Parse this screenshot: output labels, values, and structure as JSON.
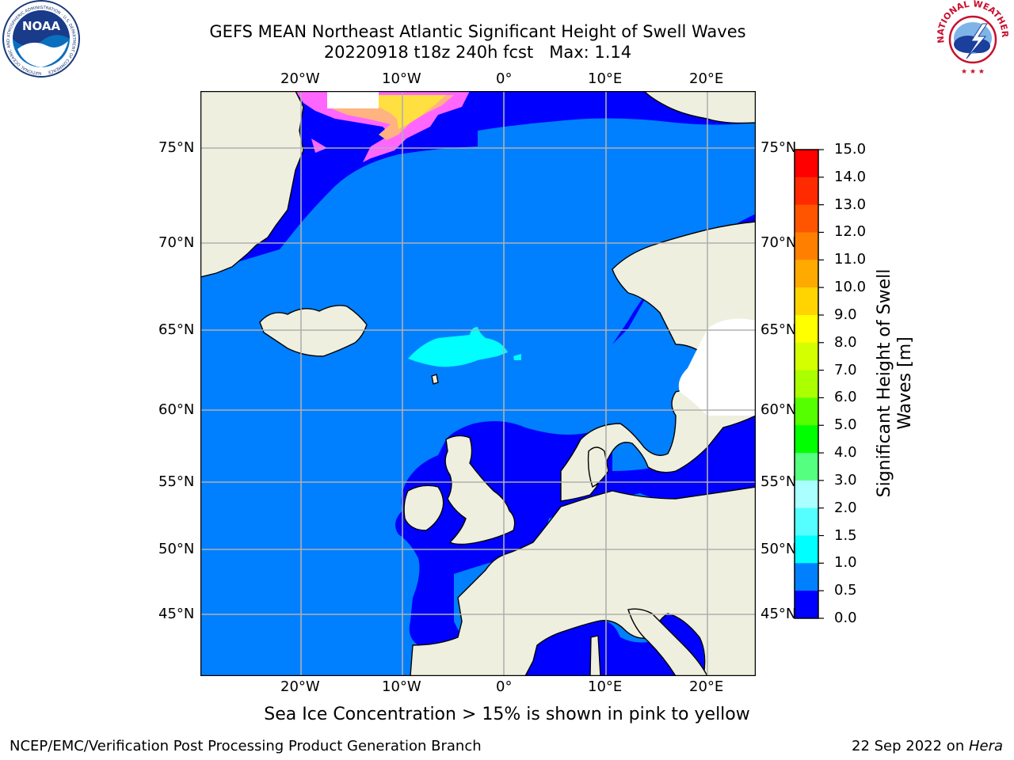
{
  "header": {
    "title_line1": "GEFS MEAN Northeast Atlantic Significant Height of Swell Waves",
    "title_line2": "20220918 t18z 240h fcst   Max: 1.14"
  },
  "logos": {
    "noaa_text": "NOAA",
    "noaa_ring_text": "NATIONAL OCEANIC AND ATMOSPHERIC ADMINISTRATION · U.S. DEPARTMENT OF COMMERCE",
    "nws_ring_text": "NATIONAL WEATHER SERVICE"
  },
  "map": {
    "lon_ticks_top": [
      "20°W",
      "10°W",
      "0°",
      "10°E",
      "20°E"
    ],
    "lon_ticks_bottom": [
      "20°W",
      "10°W",
      "0°",
      "10°E",
      "20°E"
    ],
    "lat_ticks_left": [
      "75°N",
      "70°N",
      "65°N",
      "60°N",
      "55°N",
      "50°N",
      "45°N"
    ],
    "lat_ticks_right": [
      "75°N",
      "70°N",
      "65°N",
      "60°N",
      "55°N",
      "50°N",
      "45°N"
    ],
    "ocean_color": "#0080ff",
    "low_swell_color": "#0000ff",
    "land_color": "#efefdf",
    "ice_colors": [
      "#ff66ff",
      "#ffb380",
      "#ffe040",
      "#ffffff"
    ]
  },
  "colorbar": {
    "label_line1": "Significant Height of Swell",
    "label_line2": "Waves [m]",
    "ticks": [
      "15.0",
      "14.0",
      "13.0",
      "12.0",
      "11.0",
      "10.0",
      "9.0",
      "8.0",
      "7.0",
      "6.0",
      "5.0",
      "4.0",
      "3.0",
      "2.0",
      "1.5",
      "1.0",
      "0.5",
      "0.0"
    ],
    "colors_top_to_bottom": [
      "#ff0000",
      "#ff2a00",
      "#ff5500",
      "#ff8000",
      "#ffaa00",
      "#ffd400",
      "#ffff00",
      "#d4ff00",
      "#aaff00",
      "#55ff00",
      "#00ff00",
      "#55ff7f",
      "#aaffff",
      "#55ffff",
      "#00ffff",
      "#0080ff",
      "#0000ff"
    ]
  },
  "note": "Sea Ice Concentration > 15% is shown in pink to yellow",
  "footer": {
    "left": "NCEP/EMC/Verification Post Processing Product Generation Branch",
    "right_prefix": "22 Sep 2022 on ",
    "right_host": "Hera"
  }
}
